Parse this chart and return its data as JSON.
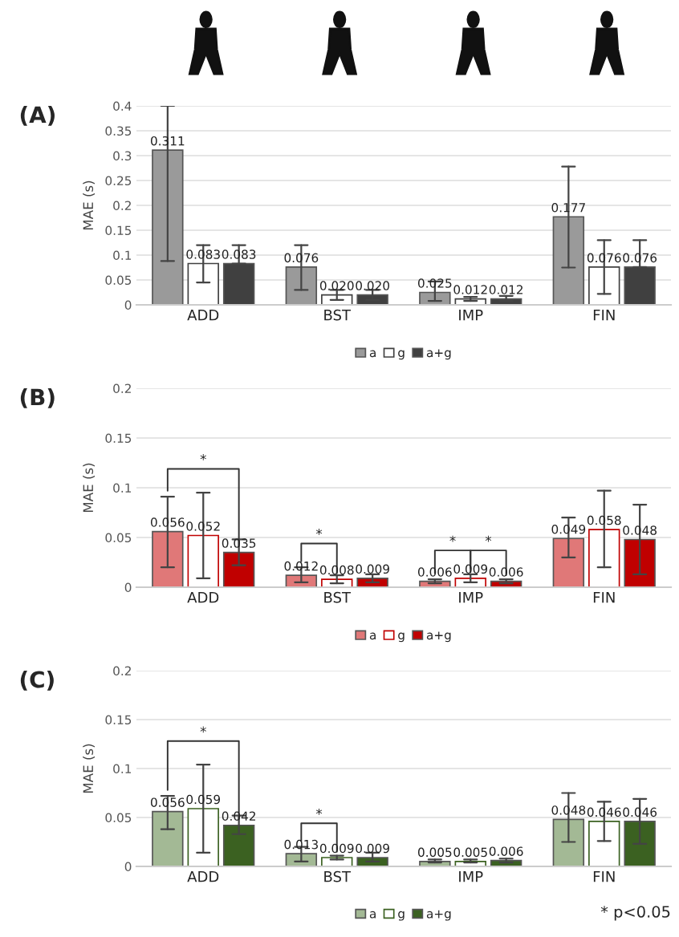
{
  "chart_data": [
    {
      "type": "bar",
      "title": "(A)",
      "ylabel": "MAE (s)",
      "categories": [
        "ADD",
        "BST",
        "IMP",
        "FIN"
      ],
      "ylim": [
        0,
        0.4
      ],
      "yticks": [
        0,
        0.05,
        0.1,
        0.15,
        0.2,
        0.25,
        0.3,
        0.35,
        0.4
      ],
      "grid": "y",
      "legend": "bottom",
      "series": [
        {
          "name": "a",
          "color": "#9a9a9a",
          "values": [
            0.311,
            0.076,
            0.025,
            0.177
          ],
          "value_labels": [
            "0.311",
            "0.076",
            "0.025",
            "0.177"
          ],
          "errors": [
            [
              0.088,
              0.4
            ],
            [
              0.03,
              0.12
            ],
            [
              0.008,
              0.047
            ],
            [
              0.075,
              0.278
            ]
          ]
        },
        {
          "name": "g",
          "color": "#ffffff",
          "values": [
            0.083,
            0.02,
            0.012,
            0.076
          ],
          "value_labels": [
            "0.083",
            "0.020",
            "0.012",
            "0.076"
          ],
          "errors": [
            [
              0.045,
              0.12
            ],
            [
              0.01,
              0.03
            ],
            [
              0.008,
              0.016
            ],
            [
              0.022,
              0.13
            ]
          ]
        },
        {
          "name": "a+g",
          "color": "#404040",
          "values": [
            0.083,
            0.02,
            0.012,
            0.076
          ],
          "value_labels": [
            "0.083",
            "0.020",
            "0.012",
            "0.076"
          ],
          "errors": [
            [
              0.083,
              0.12
            ],
            [
              0.01,
              0.03
            ],
            [
              0.008,
              0.018
            ],
            [
              0.076,
              0.13
            ]
          ]
        }
      ]
    },
    {
      "type": "bar",
      "title": "(B)",
      "ylabel": "MAE (s)",
      "categories": [
        "ADD",
        "BST",
        "IMP",
        "FIN"
      ],
      "ylim": [
        0,
        0.2
      ],
      "yticks": [
        0,
        0.05,
        0.1,
        0.15,
        0.2
      ],
      "grid": "y",
      "legend": "bottom",
      "series": [
        {
          "name": "a",
          "color": "#e07878",
          "values": [
            0.056,
            0.012,
            0.006,
            0.049
          ],
          "value_labels": [
            "0.056",
            "0.012",
            "0.006",
            "0.049"
          ],
          "errors": [
            [
              0.02,
              0.091
            ],
            [
              0.005,
              0.02
            ],
            [
              0.004,
              0.008
            ],
            [
              0.03,
              0.07
            ]
          ]
        },
        {
          "name": "g",
          "color": "#ffffff",
          "values": [
            0.052,
            0.008,
            0.009,
            0.058
          ],
          "value_labels": [
            "0.052",
            "0.008",
            "0.009",
            "0.058"
          ],
          "errors": [
            [
              0.009,
              0.095
            ],
            [
              0.004,
              0.012
            ],
            [
              0.005,
              0.013
            ],
            [
              0.02,
              0.097
            ]
          ]
        },
        {
          "name": "a+g",
          "color": "#c00000",
          "values": [
            0.035,
            0.009,
            0.006,
            0.048
          ],
          "value_labels": [
            "0.035",
            "0.009",
            "0.006",
            "0.048"
          ],
          "errors": [
            [
              0.022,
              0.048
            ],
            [
              0.005,
              0.013
            ],
            [
              0.004,
              0.008
            ],
            [
              0.013,
              0.083
            ]
          ]
        }
      ],
      "annotations": [
        "*",
        "*",
        "*",
        "*"
      ]
    },
    {
      "type": "bar",
      "title": "(C)",
      "ylabel": "MAE (s)",
      "categories": [
        "ADD",
        "BST",
        "IMP",
        "FIN"
      ],
      "ylim": [
        0,
        0.2
      ],
      "yticks": [
        0,
        0.05,
        0.1,
        0.15,
        0.2
      ],
      "grid": "y",
      "legend": "bottom",
      "series": [
        {
          "name": "a",
          "color": "#a3b995",
          "values": [
            0.056,
            0.013,
            0.005,
            0.048
          ],
          "value_labels": [
            "0.056",
            "0.013",
            "0.005",
            "0.048"
          ],
          "errors": [
            [
              0.038,
              0.072
            ],
            [
              0.005,
              0.02
            ],
            [
              0.004,
              0.007
            ],
            [
              0.025,
              0.075
            ]
          ]
        },
        {
          "name": "g",
          "color": "#ffffff",
          "values": [
            0.059,
            0.009,
            0.005,
            0.046
          ],
          "value_labels": [
            "0.059",
            "0.009",
            "0.005",
            "0.046"
          ],
          "errors": [
            [
              0.014,
              0.104
            ],
            [
              0.007,
              0.011
            ],
            [
              0.004,
              0.007
            ],
            [
              0.026,
              0.066
            ]
          ]
        },
        {
          "name": "a+g",
          "color": "#3b6121",
          "values": [
            0.042,
            0.009,
            0.006,
            0.046
          ],
          "value_labels": [
            "0.042",
            "0.009",
            "0.006",
            "0.046"
          ],
          "errors": [
            [
              0.033,
              0.052
            ],
            [
              0.005,
              0.014
            ],
            [
              0.004,
              0.008
            ],
            [
              0.023,
              0.069
            ]
          ]
        }
      ],
      "annotations": [
        "*",
        "*",
        "* p<0.05"
      ]
    }
  ]
}
